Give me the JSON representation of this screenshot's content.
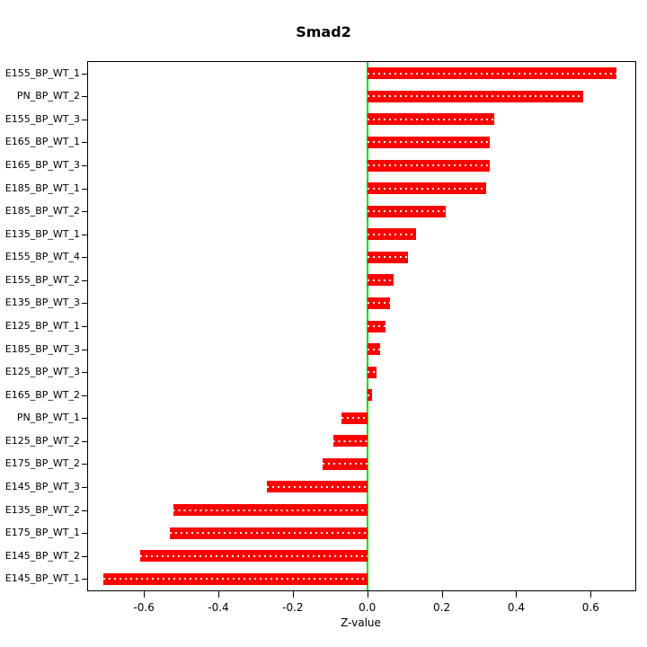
{
  "chart_data": {
    "type": "bar",
    "orientation": "horizontal",
    "title": "Smad2",
    "xlabel": "Z-value",
    "ylabel": "",
    "grid": false,
    "legend": null,
    "bar_color": "#ff0000",
    "zero_line_color": "#00dd00",
    "xlim": [
      -0.75,
      0.72
    ],
    "xticks": [
      -0.6,
      -0.4,
      -0.2,
      0.0,
      0.2,
      0.4,
      0.6
    ],
    "xtick_labels": [
      "-0.6",
      "-0.4",
      "-0.2",
      "0.0",
      "0.2",
      "0.4",
      "0.6"
    ],
    "categories": [
      "E155_BP_WT_1",
      "PN_BP_WT_2",
      "E155_BP_WT_3",
      "E165_BP_WT_1",
      "E165_BP_WT_3",
      "E185_BP_WT_1",
      "E185_BP_WT_2",
      "E135_BP_WT_1",
      "E155_BP_WT_4",
      "E155_BP_WT_2",
      "E135_BP_WT_3",
      "E125_BP_WT_1",
      "E185_BP_WT_3",
      "E125_BP_WT_3",
      "E165_BP_WT_2",
      "PN_BP_WT_1",
      "E125_BP_WT_2",
      "E175_BP_WT_2",
      "E145_BP_WT_3",
      "E135_BP_WT_2",
      "E175_BP_WT_1",
      "E145_BP_WT_2",
      "E145_BP_WT_1"
    ],
    "values": [
      0.67,
      0.58,
      0.34,
      0.33,
      0.33,
      0.32,
      0.21,
      0.13,
      0.11,
      0.07,
      0.06,
      0.05,
      0.035,
      0.025,
      0.012,
      -0.07,
      -0.09,
      -0.12,
      -0.27,
      -0.52,
      -0.53,
      -0.61,
      -0.71
    ]
  }
}
